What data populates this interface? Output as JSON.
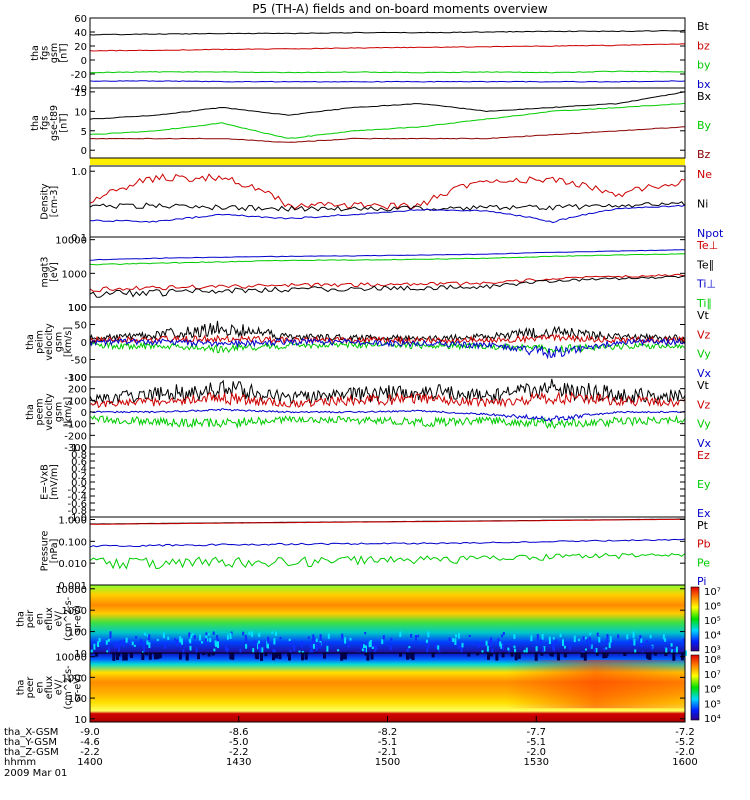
{
  "title": "P5 (TH-A) fields and on-board moments overview",
  "chart_data": [
    {
      "type": "line",
      "id": "fgs_gsm",
      "ylabel": [
        "tha",
        "fgs",
        "gsm",
        "[nT]"
      ],
      "ylim": [
        -40,
        60
      ],
      "ticks": [
        -40,
        -20,
        0,
        20,
        40,
        60
      ],
      "tick_labels": [
        "-40",
        "-20",
        "0",
        "20",
        "40",
        "60"
      ],
      "series": [
        {
          "name": "Bt",
          "color": "#000000",
          "values": [
            36,
            37,
            38,
            38,
            39,
            39,
            40,
            41,
            41,
            42
          ]
        },
        {
          "name": "bz",
          "color": "#cc0000",
          "values": [
            13,
            14,
            15,
            16,
            17,
            18,
            19,
            20,
            21,
            23
          ]
        },
        {
          "name": "by",
          "color": "#00cc00",
          "values": [
            -18,
            -17,
            -17,
            -18,
            -17,
            -18,
            -17,
            -18,
            -16,
            -17
          ]
        },
        {
          "name": "bx",
          "color": "#0000cc",
          "values": [
            -30,
            -30,
            -31,
            -31,
            -31,
            -31,
            -31,
            -31,
            -31,
            -30
          ]
        }
      ]
    },
    {
      "type": "line",
      "id": "fgs_dsl",
      "ylabel": [
        "tha",
        "fgs",
        "gse-t89",
        "[nT]"
      ],
      "ylim": [
        -2,
        16
      ],
      "ticks": [
        0,
        5,
        10,
        15
      ],
      "tick_labels": [
        "0",
        "5",
        "10",
        "15"
      ],
      "series": [
        {
          "name": "Bx",
          "color": "#000000",
          "values": [
            8,
            9,
            11,
            9,
            11,
            12,
            10,
            11,
            12,
            15
          ]
        },
        {
          "name": "By",
          "color": "#00cc00",
          "values": [
            4,
            5,
            7,
            3,
            5,
            6,
            8,
            10,
            11,
            12
          ]
        },
        {
          "name": "Bz",
          "color": "#8b0000",
          "values": [
            3,
            3,
            3,
            2,
            3,
            3,
            3,
            4,
            5,
            6
          ]
        }
      ]
    },
    {
      "type": "line",
      "id": "density",
      "ylabel": [
        "Density",
        "[cm-3]"
      ],
      "scale": "log",
      "ylim": [
        0.1,
        1.2
      ],
      "ticks": [
        0.1,
        1.0
      ],
      "tick_labels": [
        "0.1",
        "1.0"
      ],
      "series": [
        {
          "name": "Ne",
          "color": "#cc0000",
          "values": [
            0.35,
            0.8,
            0.8,
            0.3,
            0.3,
            0.3,
            0.75,
            0.75,
            0.45,
            0.7
          ]
        },
        {
          "name": "Ni",
          "color": "#000000",
          "values": [
            0.3,
            0.3,
            0.28,
            0.27,
            0.27,
            0.27,
            0.28,
            0.28,
            0.3,
            0.32
          ]
        },
        {
          "name": "Npot",
          "color": "#0000cc",
          "values": [
            0.18,
            0.17,
            0.22,
            0.19,
            0.22,
            0.26,
            0.25,
            0.17,
            0.27,
            0.3
          ]
        }
      ]
    },
    {
      "type": "line",
      "id": "temperature",
      "ylabel": [
        "magt3",
        "[eV]"
      ],
      "scale": "log",
      "ylim": [
        100,
        12000
      ],
      "ticks": [
        100,
        1000,
        10000
      ],
      "tick_labels": [
        "100",
        "1000",
        "10000"
      ],
      "series": [
        {
          "name": "Te⊥",
          "color": "#cc0000",
          "values": [
            330,
            380,
            400,
            440,
            460,
            480,
            500,
            700,
            800,
            900
          ]
        },
        {
          "name": "Te∥",
          "color": "#000000",
          "values": [
            240,
            270,
            300,
            340,
            350,
            380,
            400,
            600,
            700,
            800
          ]
        },
        {
          "name": "Ti⊥",
          "color": "#0000cc",
          "values": [
            2500,
            2800,
            3000,
            3200,
            3300,
            3500,
            3700,
            4200,
            4600,
            5000
          ]
        },
        {
          "name": "Ti∥",
          "color": "#00cc00",
          "values": [
            1800,
            2000,
            2200,
            2400,
            2500,
            2600,
            2800,
            3200,
            3500,
            3800
          ]
        }
      ]
    },
    {
      "type": "line",
      "id": "peim_velocity",
      "ylabel": [
        "tha",
        "peim",
        "velocity",
        "gsm",
        "[km/s]"
      ],
      "ylim": [
        -100,
        100
      ],
      "ticks": [
        -100,
        -50,
        0,
        50,
        100
      ],
      "tick_labels": [
        "-100",
        "-50",
        "0",
        "50",
        "100"
      ],
      "series": [
        {
          "name": "Vt",
          "color": "#000000",
          "values": [
            10,
            20,
            40,
            15,
            12,
            10,
            15,
            30,
            15,
            12
          ]
        },
        {
          "name": "Vz",
          "color": "#cc0000",
          "values": [
            5,
            8,
            10,
            5,
            5,
            5,
            6,
            12,
            6,
            5
          ]
        },
        {
          "name": "Vy",
          "color": "#00cc00",
          "values": [
            -10,
            -12,
            -20,
            -10,
            -8,
            -10,
            -12,
            -20,
            -12,
            -10
          ]
        },
        {
          "name": "Vx",
          "color": "#0000cc",
          "values": [
            0,
            0,
            -5,
            0,
            0,
            -5,
            -10,
            -30,
            0,
            0
          ]
        }
      ]
    },
    {
      "type": "line",
      "id": "peem_velocity",
      "ylabel": [
        "tha",
        "peem",
        "velocity",
        "gsm",
        "[km/s]"
      ],
      "ylim": [
        -300,
        300
      ],
      "ticks": [
        -300,
        -200,
        -100,
        0,
        100,
        200,
        300
      ],
      "tick_labels": [
        "-300",
        "-200",
        "-100",
        "0",
        "100",
        "200",
        "300"
      ],
      "series": [
        {
          "name": "Vt",
          "color": "#000000",
          "values": [
            100,
            150,
            200,
            120,
            150,
            180,
            130,
            200,
            150,
            130
          ]
        },
        {
          "name": "Vz",
          "color": "#cc0000",
          "values": [
            60,
            90,
            120,
            70,
            100,
            110,
            80,
            120,
            100,
            80
          ]
        },
        {
          "name": "Vy",
          "color": "#00cc00",
          "values": [
            -60,
            -80,
            -100,
            -60,
            -70,
            -90,
            -70,
            -100,
            -80,
            -70
          ]
        },
        {
          "name": "Vx",
          "color": "#0000cc",
          "values": [
            0,
            0,
            20,
            0,
            0,
            10,
            -20,
            -60,
            0,
            0
          ]
        }
      ]
    },
    {
      "type": "line",
      "id": "efield",
      "ylabel": [
        "E=-VxB",
        "[mV/m]"
      ],
      "ylim": [
        -1.0,
        1.0
      ],
      "ticks": [
        -1.0,
        -0.8,
        -0.6,
        -0.4,
        -0.2,
        0.0,
        0.2,
        0.4,
        0.6,
        0.8,
        1.0
      ],
      "tick_labels": [
        "-1.0",
        "-0.8",
        "-0.6",
        "-0.4",
        "-0.2",
        "0.0",
        "0.2",
        "0.4",
        "0.6",
        "0.8",
        "1.0"
      ],
      "series": [
        {
          "name": "Ez",
          "color": "#cc0000",
          "values": []
        },
        {
          "name": "Ey",
          "color": "#00cc00",
          "values": []
        },
        {
          "name": "Ex",
          "color": "#0000cc",
          "values": []
        }
      ]
    },
    {
      "type": "line",
      "id": "pressure",
      "ylabel": [
        "Pressure",
        "[nPa]"
      ],
      "scale": "log",
      "ylim": [
        0.001,
        1.3
      ],
      "ticks": [
        0.001,
        0.01,
        0.1,
        1.0
      ],
      "tick_labels": [
        "0.001",
        "0.010",
        "0.100",
        "1.000"
      ],
      "series": [
        {
          "name": "Pt",
          "color": "#000000",
          "values": [
            0.62,
            0.66,
            0.7,
            0.74,
            0.78,
            0.82,
            0.86,
            0.92,
            0.98,
            1.05
          ]
        },
        {
          "name": "Pb",
          "color": "#cc0000",
          "values": [
            0.6,
            0.64,
            0.68,
            0.72,
            0.76,
            0.8,
            0.84,
            0.9,
            0.96,
            1.02
          ]
        },
        {
          "name": "Pe",
          "color": "#00cc00",
          "values": [
            0.011,
            0.012,
            0.013,
            0.013,
            0.014,
            0.015,
            0.016,
            0.02,
            0.022,
            0.025
          ]
        },
        {
          "name": "Pi",
          "color": "#0000cc",
          "values": [
            0.06,
            0.065,
            0.07,
            0.075,
            0.078,
            0.08,
            0.085,
            0.1,
            0.11,
            0.12
          ]
        }
      ]
    },
    {
      "type": "heatmap",
      "id": "peir_spectrogram",
      "ylabel": [
        "tha",
        "peir",
        "en",
        "eflux",
        "eV/",
        "(cm^2-s-",
        "sr-eV)"
      ],
      "scale": "log",
      "ylim": [
        10,
        15000
      ],
      "ticks": [
        10,
        100,
        1000,
        10000
      ],
      "tick_labels": [
        "10",
        "100",
        "1000",
        "10000"
      ],
      "colorbar_labels": [
        "10³",
        "10⁴",
        "10⁵",
        "10⁶",
        "10⁷"
      ]
    },
    {
      "type": "heatmap",
      "id": "peer_spectrogram",
      "ylabel": [
        "tha",
        "peer",
        "en",
        "eflux",
        "eV/",
        "(cm^2-s-",
        "sr-eV)"
      ],
      "scale": "log",
      "ylim": [
        7,
        15000
      ],
      "ticks": [
        10,
        100,
        1000,
        10000
      ],
      "tick_labels": [
        "10",
        "100",
        "1000",
        "10000"
      ],
      "colorbar_labels": [
        "10⁴",
        "10⁵",
        "10⁶",
        "10⁷",
        "10⁸"
      ]
    }
  ],
  "x_axis": {
    "rows": [
      {
        "label": "tha_X-GSM",
        "values": [
          "-9.0",
          "-8.6",
          "-8.2",
          "-7.7",
          "-7.2"
        ]
      },
      {
        "label": "tha_Y-GSM",
        "values": [
          "-4.6",
          "-5.0",
          "-5.1",
          "-5.1",
          "-5.2"
        ]
      },
      {
        "label": "tha_Z-GSM",
        "values": [
          "-2.2",
          "-2.2",
          "-2.1",
          "-2.0",
          "-2.0"
        ]
      },
      {
        "label": "hhmm",
        "values": [
          "1400",
          "1430",
          "1500",
          "1530",
          "1600"
        ]
      }
    ],
    "date": "2009 Mar 01"
  },
  "colors": {
    "status_bar": "#ffee00",
    "frame": "#000000"
  }
}
